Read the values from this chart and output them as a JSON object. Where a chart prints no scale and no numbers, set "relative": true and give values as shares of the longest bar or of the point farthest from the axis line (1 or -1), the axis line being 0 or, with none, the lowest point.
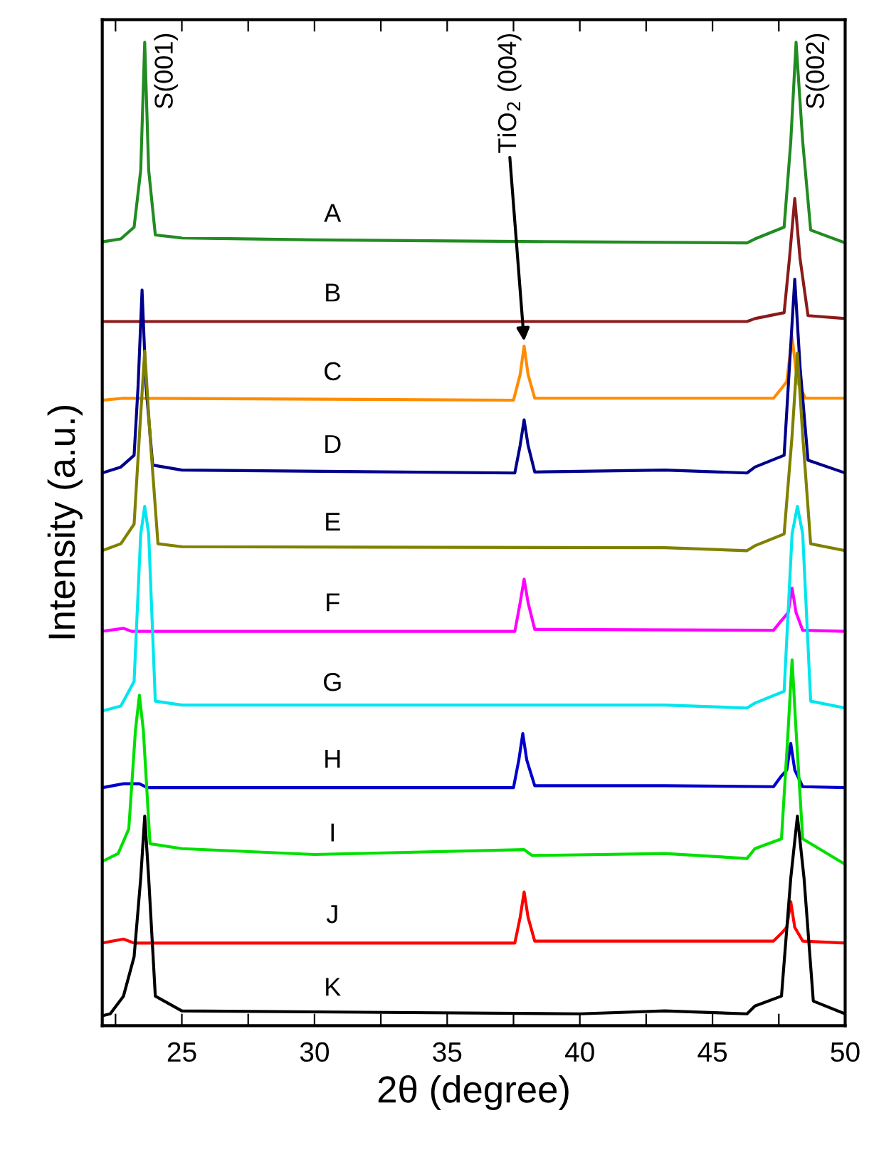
{
  "chart_data": {
    "type": "line",
    "relative": true,
    "xlabel": "2θ (degree)",
    "ylabel": "Intensity (a.u.)",
    "xlim": [
      22,
      50
    ],
    "xticks": [
      {
        "value": 22.5,
        "label": null
      },
      25,
      {
        "value": 27.5,
        "label": null
      },
      30,
      {
        "value": 32.5,
        "label": null
      },
      35,
      {
        "value": 37.5,
        "label": null
      },
      40,
      {
        "value": 42.5,
        "label": null
      },
      45,
      {
        "value": 47.5,
        "label": null
      },
      50
    ],
    "tick_labels": "x",
    "grid": false,
    "legend": false,
    "marker": "none",
    "line_style": "solid",
    "annotations": [
      {
        "text": "S(001)",
        "x": 23.6,
        "y": 1.0
      },
      {
        "text": "TiO$_{2}$ (004)",
        "x": 37.9,
        "y": 0.691
      },
      {
        "text": "S(002)",
        "x": 48.15,
        "y": 1.0
      }
    ],
    "series": [
      {
        "name": "A",
        "color": "#228b22",
        "x": [
          22,
          22.7,
          23.2,
          23.45,
          23.6,
          23.75,
          24.0,
          25,
          30,
          40,
          46.3,
          46.6,
          47.7,
          47.95,
          48.15,
          48.4,
          48.7,
          50
        ],
        "values": [
          0.797,
          0.8,
          0.812,
          0.87,
          1.0,
          0.87,
          0.804,
          0.801,
          0.799,
          0.797,
          0.796,
          0.8,
          0.812,
          0.899,
          1.0,
          0.899,
          0.809,
          0.796
        ]
      },
      {
        "name": "B",
        "color": "#8b1a1a",
        "x": [
          22,
          43.2,
          46.3,
          46.6,
          47.7,
          47.9,
          48.1,
          48.3,
          48.6,
          50
        ],
        "values": [
          0.716,
          0.716,
          0.716,
          0.719,
          0.725,
          0.78,
          0.841,
          0.78,
          0.722,
          0.719
        ]
      },
      {
        "name": "C",
        "color": "#ff8c00",
        "x": [
          22,
          22.8,
          37.5,
          37.75,
          37.9,
          38.05,
          38.3,
          47.3,
          47.6,
          47.8,
          48.0,
          48.2,
          48.5,
          50
        ],
        "values": [
          0.636,
          0.638,
          0.636,
          0.662,
          0.691,
          0.662,
          0.638,
          0.638,
          0.648,
          0.655,
          0.7,
          0.655,
          0.638,
          0.638
        ]
      },
      {
        "name": "D",
        "color": "#00008b",
        "x": [
          22,
          22.7,
          23.2,
          23.35,
          23.5,
          23.65,
          23.9,
          25,
          37.55,
          37.75,
          37.9,
          38.05,
          38.3,
          43.2,
          46.3,
          46.6,
          47.7,
          47.9,
          48.1,
          48.3,
          48.6,
          50
        ],
        "values": [
          0.562,
          0.568,
          0.58,
          0.65,
          0.748,
          0.65,
          0.57,
          0.565,
          0.562,
          0.59,
          0.616,
          0.59,
          0.563,
          0.565,
          0.562,
          0.568,
          0.58,
          0.67,
          0.759,
          0.67,
          0.575,
          0.562
        ]
      },
      {
        "name": "E",
        "color": "#808000",
        "x": [
          22,
          22.7,
          23.2,
          23.4,
          23.6,
          23.8,
          24.1,
          25,
          43.2,
          46.3,
          46.6,
          47.7,
          48.0,
          48.2,
          48.4,
          48.7,
          50
        ],
        "values": [
          0.483,
          0.49,
          0.51,
          0.6,
          0.686,
          0.6,
          0.49,
          0.487,
          0.486,
          0.483,
          0.488,
          0.5,
          0.6,
          0.684,
          0.6,
          0.49,
          0.483
        ]
      },
      {
        "name": "F",
        "color": "#ff00ff",
        "x": [
          22,
          22.8,
          23.1,
          37.55,
          37.75,
          37.9,
          38.05,
          38.3,
          47.3,
          47.6,
          47.85,
          48.0,
          48.15,
          48.4,
          50
        ],
        "values": [
          0.401,
          0.404,
          0.401,
          0.401,
          0.43,
          0.454,
          0.43,
          0.403,
          0.402,
          0.412,
          0.42,
          0.445,
          0.42,
          0.402,
          0.401
        ]
      },
      {
        "name": "G",
        "color": "#00e5ee",
        "x": [
          22,
          22.7,
          23.2,
          23.45,
          23.6,
          23.75,
          24.0,
          25,
          43.2,
          46.3,
          46.6,
          47.7,
          48.0,
          48.2,
          48.4,
          48.7,
          50
        ],
        "values": [
          0.32,
          0.325,
          0.35,
          0.5,
          0.528,
          0.5,
          0.33,
          0.326,
          0.326,
          0.323,
          0.328,
          0.34,
          0.5,
          0.528,
          0.5,
          0.33,
          0.323
        ]
      },
      {
        "name": "H",
        "color": "#0000cd",
        "x": [
          22,
          22.8,
          23.4,
          23.7,
          37.5,
          37.7,
          37.85,
          38.0,
          38.3,
          43.2,
          47.3,
          47.6,
          47.8,
          47.95,
          48.1,
          48.4,
          50
        ],
        "values": [
          0.242,
          0.246,
          0.246,
          0.242,
          0.242,
          0.27,
          0.297,
          0.27,
          0.244,
          0.244,
          0.243,
          0.254,
          0.26,
          0.287,
          0.26,
          0.243,
          0.242
        ]
      },
      {
        "name": "I",
        "color": "#00e000",
        "x": [
          22,
          22.6,
          23.0,
          23.25,
          23.4,
          23.55,
          23.8,
          25,
          30,
          37.9,
          38.2,
          43.2,
          46.3,
          46.6,
          47.6,
          47.85,
          48.0,
          48.15,
          48.4,
          50
        ],
        "values": [
          0.167,
          0.175,
          0.2,
          0.3,
          0.336,
          0.3,
          0.185,
          0.18,
          0.174,
          0.179,
          0.173,
          0.175,
          0.17,
          0.18,
          0.19,
          0.3,
          0.372,
          0.3,
          0.19,
          0.164
        ]
      },
      {
        "name": "J",
        "color": "#ff0000",
        "x": [
          22,
          22.8,
          23.2,
          37.55,
          37.75,
          37.9,
          38.05,
          38.3,
          47.3,
          47.6,
          47.8,
          47.95,
          48.1,
          48.4,
          50
        ],
        "values": [
          0.084,
          0.088,
          0.084,
          0.084,
          0.11,
          0.136,
          0.11,
          0.086,
          0.086,
          0.094,
          0.1,
          0.126,
          0.1,
          0.086,
          0.084
        ]
      },
      {
        "name": "K",
        "color": "#000000",
        "x": [
          22,
          22.3,
          22.8,
          23.2,
          23.45,
          23.6,
          23.75,
          24.0,
          25,
          40,
          43.2,
          46.3,
          46.6,
          47.6,
          47.95,
          48.2,
          48.45,
          48.8,
          50
        ],
        "values": [
          0.01,
          0.012,
          0.03,
          0.07,
          0.15,
          0.213,
          0.15,
          0.03,
          0.015,
          0.012,
          0.015,
          0.012,
          0.02,
          0.03,
          0.15,
          0.213,
          0.15,
          0.025,
          0.012
        ]
      }
    ]
  }
}
